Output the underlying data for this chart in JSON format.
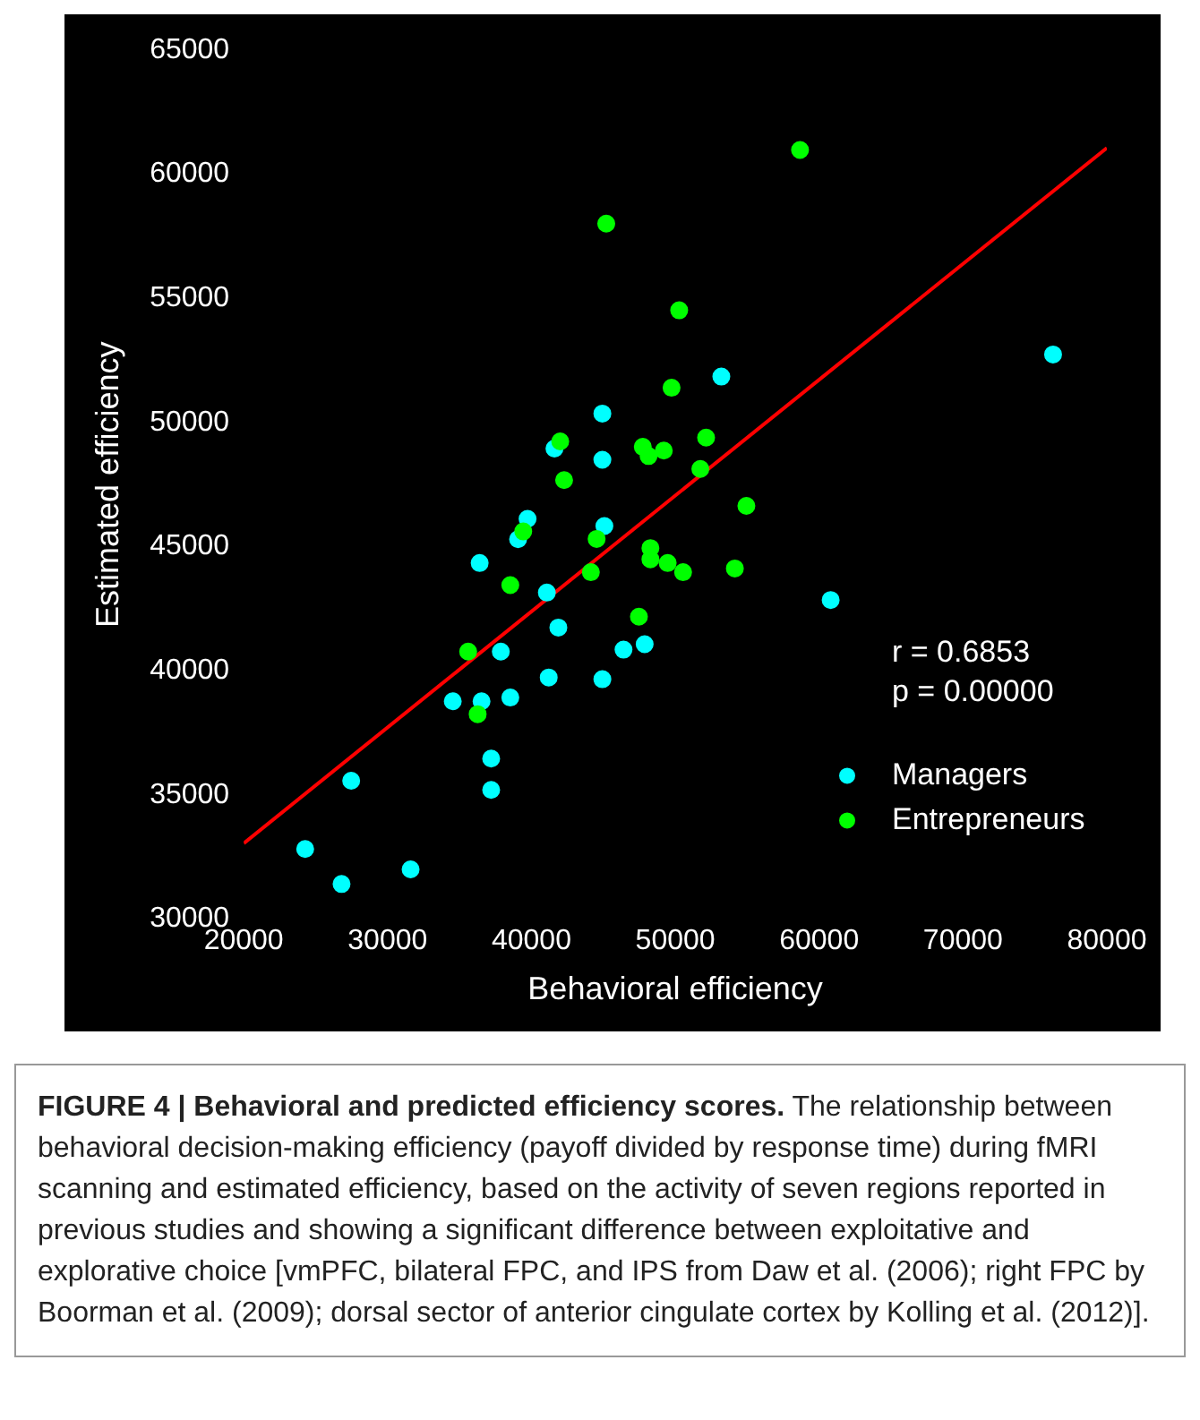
{
  "chart_data": {
    "type": "scatter",
    "title": "FIGURE 4 | Behavioral and predicted efficiency scores.",
    "xlabel": "Behavioral efficiency",
    "ylabel": "Estimated efficiency",
    "xlim": [
      20000,
      80000
    ],
    "xticks": [
      20000,
      30000,
      40000,
      50000,
      60000,
      70000,
      80000
    ],
    "ylim": [
      30000,
      65000
    ],
    "yticks": [
      30000,
      35000,
      40000,
      45000,
      50000,
      55000,
      60000,
      65000
    ],
    "legend": "bottom right",
    "marker": "circle",
    "series": [
      {
        "name": "Managers",
        "color": "#00ffff",
        "x": [
          24270,
          26800,
          27470,
          31600,
          34530,
          36400,
          36530,
          37870,
          37200,
          37200,
          38530,
          39070,
          39730,
          41070,
          41200,
          41870,
          41600,
          44930,
          44930,
          45070,
          44930,
          46400,
          47870,
          53200,
          60800,
          76260
        ],
        "values": [
          32820,
          31410,
          35570,
          32000,
          38770,
          44340,
          38770,
          40770,
          36460,
          35200,
          38920,
          45300,
          46120,
          43150,
          39730,
          41740,
          48950,
          50360,
          48500,
          45830,
          39660,
          40850,
          41070,
          51850,
          42850,
          52740
        ]
      },
      {
        "name": "Entrepreneurs",
        "color": "#00ff00",
        "x": [
          45200,
          58670,
          50270,
          49740,
          52140,
          42000,
          42270,
          47740,
          48140,
          49200,
          51740,
          54940,
          44530,
          39430,
          48270,
          48270,
          49470,
          50540,
          54140,
          44130,
          38530,
          47470,
          35600,
          36260
        ],
        "values": [
          58010,
          60980,
          54520,
          51400,
          49390,
          49240,
          47680,
          49020,
          48650,
          48870,
          48130,
          46640,
          45310,
          45610,
          44940,
          44490,
          44340,
          43970,
          44120,
          43970,
          43450,
          42180,
          40770,
          38250
        ]
      },
      {
        "type": "line",
        "marker": "none",
        "color": "#ff0000",
        "x": [
          20000,
          80000
        ],
        "values": [
          33050,
          61060
        ]
      }
    ],
    "annotations": [
      "r = 0.6853",
      "p = 0.00000",
      "The relationship between behavioral decision-making efficiency (payoff divided by response time) during fMRI scanning and estimated efficiency, based on the activity of seven regions reported in previous studies and showing a significant difference between exploitative and explorative choice [vmPFC, bilateral FPC, and IPS from Daw et al. (2006); right FPC by Boorman et al. (2009); dorsal sector of anterior cingulate cortex by Kolling et al. (2012)]."
    ]
  }
}
